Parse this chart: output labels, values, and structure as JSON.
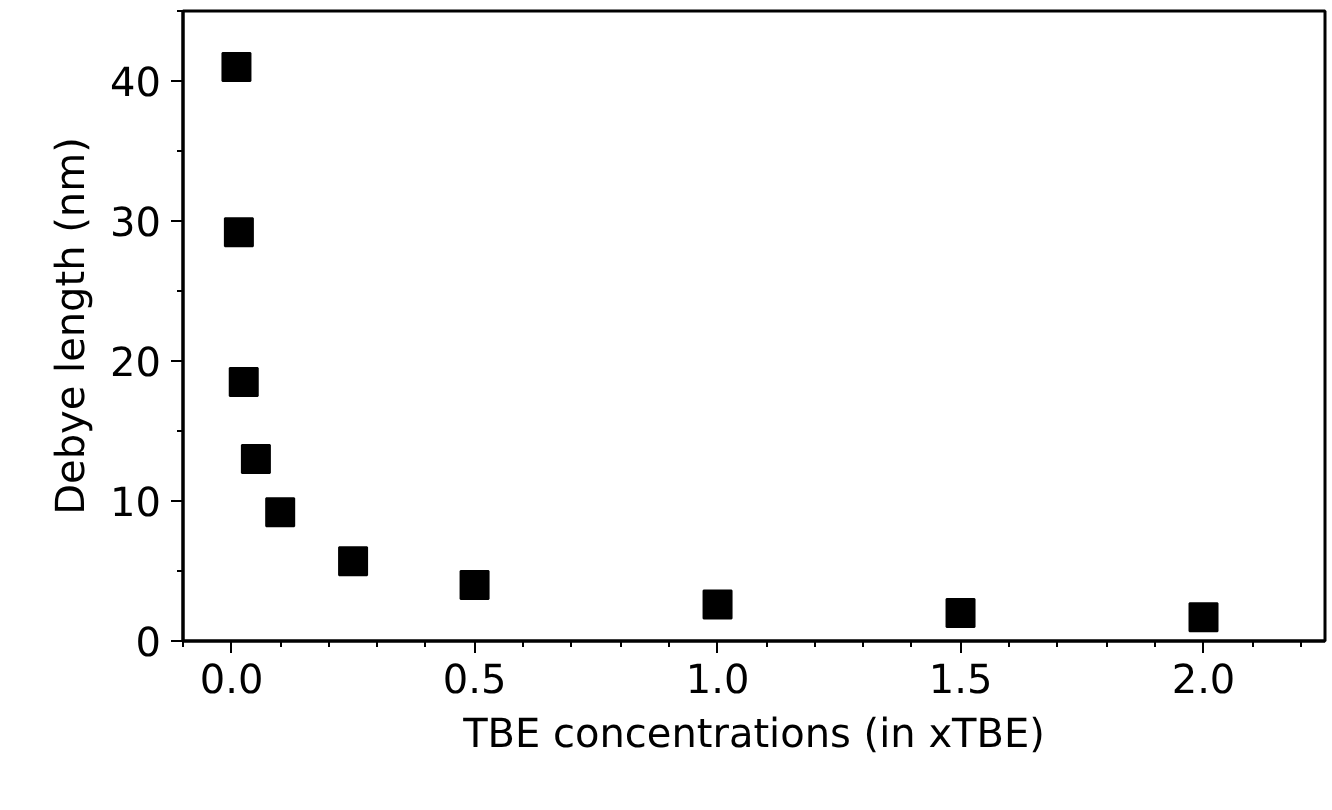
{
  "chart_data": {
    "type": "scatter",
    "xlabel": "TBE concentrations (in xTBE)",
    "ylabel": "Debye length (nm)",
    "x": [
      0.01,
      0.015,
      0.025,
      0.05,
      0.1,
      0.25,
      0.5,
      1.0,
      1.5,
      2.0
    ],
    "series": [
      {
        "color": "#000000",
        "values": [
          41.0,
          29.2,
          18.5,
          13.0,
          9.2,
          5.7,
          4.0,
          2.6,
          2.0,
          1.7
        ]
      }
    ],
    "xlim": [
      -0.1,
      2.25
    ],
    "ylim": [
      0,
      45
    ],
    "xticks": [
      {
        "value": 0,
        "label": "0.0"
      },
      {
        "value": 0.5,
        "label": "0.5"
      },
      {
        "value": 1,
        "label": "1.0"
      },
      {
        "value": 1.5,
        "label": "1.5"
      },
      {
        "value": 2,
        "label": "2.0"
      }
    ],
    "yticks": [
      0,
      10,
      20,
      30,
      40
    ],
    "marker": "square",
    "grid": false
  }
}
